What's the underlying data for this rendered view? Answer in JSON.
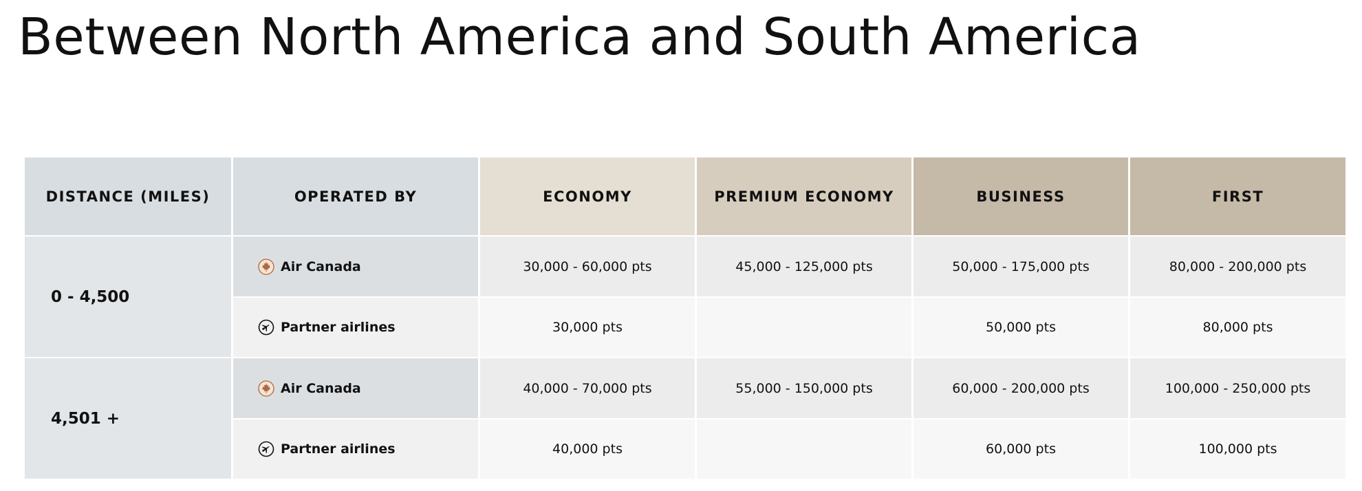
{
  "page": {
    "title": "Between North America and South America"
  },
  "table": {
    "headers": {
      "distance": "DISTANCE (MILES)",
      "operated_by": "OPERATED BY",
      "economy": "ECONOMY",
      "premium_economy": "PREMIUM ECONOMY",
      "business": "BUSINESS",
      "first": "FIRST"
    },
    "groups": [
      {
        "distance": "0 - 4,500",
        "rows": [
          {
            "operator": "Air Canada",
            "icon": "air-canada-maple-leaf-icon",
            "economy": "30,000 - 60,000 pts",
            "premium_economy": "45,000 - 125,000 pts",
            "business": "50,000 - 175,000 pts",
            "first": "80,000 - 200,000 pts"
          },
          {
            "operator": "Partner airlines",
            "icon": "airplane-circle-icon",
            "economy": "30,000 pts",
            "premium_economy": "",
            "business": "50,000 pts",
            "first": "80,000 pts"
          }
        ]
      },
      {
        "distance": "4,501 +",
        "rows": [
          {
            "operator": "Air Canada",
            "icon": "air-canada-maple-leaf-icon",
            "economy": "40,000 - 70,000 pts",
            "premium_economy": "55,000 - 150,000 pts",
            "business": "60,000 - 200,000 pts",
            "first": "100,000 - 250,000 pts"
          },
          {
            "operator": "Partner airlines",
            "icon": "airplane-circle-icon",
            "economy": "40,000 pts",
            "premium_economy": "",
            "business": "60,000 pts",
            "first": "100,000 pts"
          }
        ]
      }
    ]
  },
  "colors": {
    "air_canada_icon": "#b0683a",
    "partner_icon": "#111111",
    "header_distance": "#d7dde1",
    "header_economy": "#e4ded3",
    "header_premium": "#d6cdbf",
    "header_business": "#c5b9a8",
    "header_first": "#c5b9a8"
  }
}
